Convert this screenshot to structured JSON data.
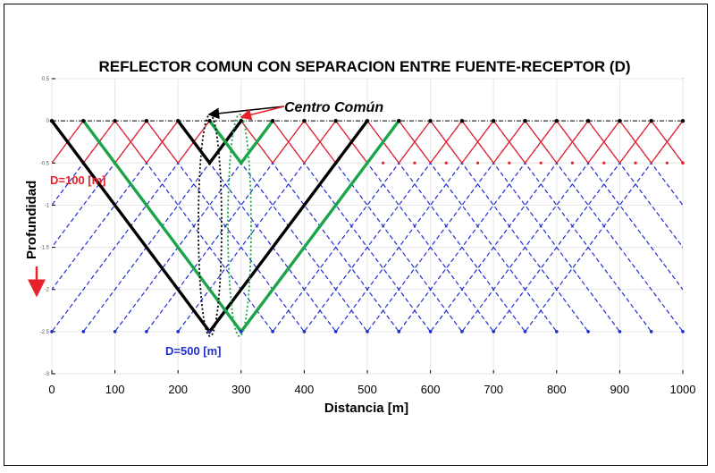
{
  "title": "REFLECTOR COMUN CON SEPARACION ENTRE FUENTE-RECEPTOR (D)",
  "xlabel": "Distancia [m]",
  "ylabel": "Profundidad",
  "annotations": {
    "centro_comun": "Centro Común",
    "d_small": "D=100 [m]",
    "d_large": "D=500 [m]"
  },
  "colors": {
    "red": "#e8202a",
    "blue": "#1f2ed0",
    "black": "#000000",
    "green": "#1ba54a",
    "arrow_red": "#e8202a"
  },
  "chart_data": {
    "type": "line",
    "xlim": [
      0,
      1000
    ],
    "ylim": [
      -3,
      0.5
    ],
    "x_ticks": [
      "0",
      "100",
      "200",
      "300",
      "400",
      "500",
      "600",
      "700",
      "800",
      "900",
      "1000"
    ],
    "y_ticks": [
      "0.5",
      "0",
      "-0.5",
      "-1",
      "-1.5",
      "-2",
      "-2.5",
      "-3"
    ],
    "grid": true,
    "shallow_reflector_depth": -0.5,
    "deep_reflector_depth": -2.5,
    "station_spacing": 50,
    "highlighted_paths": [
      {
        "color": "black",
        "source": 0,
        "receiver": 500,
        "reflection": [
          250,
          -2.5
        ]
      },
      {
        "color": "green",
        "source": 50,
        "receiver": 550,
        "reflection": [
          300,
          -2.5
        ]
      },
      {
        "color": "black",
        "source": 200,
        "receiver": 300,
        "reflection": [
          250,
          -0.5
        ]
      },
      {
        "color": "green",
        "source": 250,
        "receiver": 350,
        "reflection": [
          300,
          -0.5
        ]
      }
    ]
  }
}
